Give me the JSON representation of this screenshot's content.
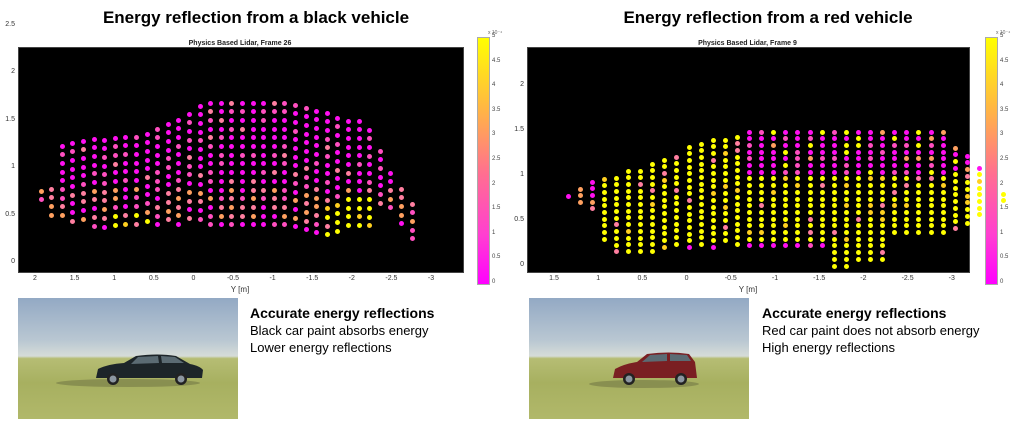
{
  "panels": [
    {
      "main_title": "Energy reflection from a black vehicle",
      "plot_title": "Physics Based Lidar, Frame 26",
      "xlabel": "Y [m]",
      "xticks": [
        "2",
        "1.5",
        "1",
        "0.5",
        "0",
        "-0.5",
        "-1",
        "-1.5",
        "-2",
        "-2.5",
        "-3"
      ],
      "yticks": [
        "0",
        "0.5",
        "1",
        "1.5",
        "2",
        "2.5"
      ],
      "colorbar": {
        "exponent": "x 10⁻⁴",
        "ticks": [
          "0",
          "0.5",
          "1",
          "1.5",
          "2",
          "2.5",
          "3",
          "3.5",
          "4",
          "4.5",
          "5"
        ]
      },
      "caption": {
        "heading": "Accurate energy reflections",
        "line1": "Black car paint absorbs energy",
        "line2": "Lower energy reflections"
      },
      "photo": {
        "car_color": "#1d2529",
        "label": "black sedan"
      }
    },
    {
      "main_title": "Energy reflection from a red vehicle",
      "plot_title": "Physics Based Lidar, Frame 9",
      "xlabel": "Y [m]",
      "xticks": [
        "1.5",
        "1",
        "0.5",
        "0",
        "-0.5",
        "-1",
        "-1.5",
        "-2",
        "-2.5",
        "-3"
      ],
      "yticks": [
        "0",
        "0.5",
        "1",
        "1.5",
        "2"
      ],
      "colorbar": {
        "exponent": "x 10⁻⁴",
        "ticks": [
          "0",
          "0.5",
          "1",
          "1.5",
          "2",
          "2.5",
          "3",
          "3.5",
          "4",
          "4.5",
          "5"
        ]
      },
      "caption": {
        "heading": "Accurate energy reflections",
        "line1": "Red car paint does not absorb energy",
        "line2": "High energy reflections"
      },
      "photo": {
        "car_color": "#7a1f22",
        "label": "red wagon"
      }
    }
  ],
  "chart_data": [
    {
      "type": "scatter",
      "title": "Physics Based Lidar, Frame 26",
      "suptitle": "Energy reflection from a black vehicle",
      "xlabel": "Y [m]",
      "ylabel": "",
      "xlim": [
        2.25,
        -3.4
      ],
      "ylim": [
        -0.05,
        2.7
      ],
      "colorbar": {
        "min": 0,
        "max": 0.0005,
        "colormap": "spring (magenta to yellow)"
      },
      "description": "Lidar point cloud of a sedan profile; mostly magenta/pink (low energy) points with yellow (high energy) patches at wheel regions near Y≈1.0 and Y≈-1.9",
      "profile": {
        "roof_top_z": 1.4,
        "hood_z": 0.85,
        "trunk_z": 0.9,
        "bottom_z": 0.05,
        "front_y": 2.0,
        "rear_y": -3.2
      },
      "dominant_value_range": [
        5e-05,
        0.0002
      ],
      "high_energy_regions": [
        {
          "y_range": [
            1.2,
            0.8
          ],
          "z_range": [
            0.1,
            0.6
          ]
        },
        {
          "y_range": [
            -1.6,
            -2.1
          ],
          "z_range": [
            0.05,
            0.7
          ]
        }
      ]
    },
    {
      "type": "scatter",
      "title": "Physics Based Lidar, Frame 9",
      "suptitle": "Energy reflection from a red vehicle",
      "xlabel": "Y [m]",
      "ylabel": "",
      "xlim": [
        1.75,
        -3.2
      ],
      "ylim": [
        -0.05,
        2.35
      ],
      "colorbar": {
        "min": 0,
        "max": 0.0005,
        "colormap": "spring (magenta to yellow)"
      },
      "description": "Lidar point cloud of a wagon profile; mostly yellow (high energy) points with magenta points along the roofline rows and lower body",
      "profile": {
        "roof_top_z": 1.45,
        "hood_z": 0.8,
        "bottom_z": 0.05,
        "front_y": 1.5,
        "rear_y": -3.0
      },
      "dominant_value_range": [
        0.0004,
        0.0005
      ]
    }
  ]
}
